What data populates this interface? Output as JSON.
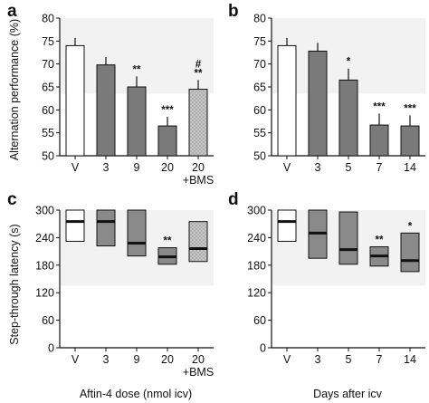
{
  "colors": {
    "bar_white": "#ffffff",
    "bar_gray": "#7a7a7a",
    "bar_stipple": "#bdbdbd",
    "box_gray": "#8a8a8a",
    "median": "#111111",
    "axis": "#111111",
    "panel_shade": "#f2f2f2"
  },
  "chart_data": [
    {
      "panel": "a",
      "type": "bar",
      "ylabel": "Alternation performance (%)",
      "xlabel": "",
      "ylim": [
        50,
        80
      ],
      "yticks": [
        "50",
        "55",
        "60",
        "65",
        "70",
        "75",
        "80"
      ],
      "categories": [
        "V",
        "3",
        "9",
        "20",
        "20 +BMS"
      ],
      "values": [
        74,
        69.8,
        65,
        56.5,
        64.5
      ],
      "errors": [
        1.7,
        1.7,
        2.3,
        2.0,
        2.0
      ],
      "fills": [
        "white",
        "gray",
        "gray",
        "gray",
        "stipple"
      ],
      "significance": [
        "",
        "",
        "**",
        "***",
        "# **"
      ]
    },
    {
      "panel": "b",
      "type": "bar",
      "ylabel": "",
      "xlabel": "",
      "ylim": [
        50,
        80
      ],
      "yticks": [
        "50",
        "55",
        "60",
        "65",
        "70",
        "75",
        "80"
      ],
      "categories": [
        "V",
        "3",
        "5",
        "7",
        "14"
      ],
      "values": [
        74,
        72.8,
        66.5,
        56.7,
        56.5
      ],
      "errors": [
        1.7,
        1.8,
        2.5,
        2.5,
        2.3
      ],
      "fills": [
        "white",
        "gray",
        "gray",
        "gray",
        "gray"
      ],
      "significance": [
        "",
        "",
        "*",
        "***",
        "***"
      ]
    },
    {
      "panel": "c",
      "type": "box",
      "ylabel": "Step-through latency (s)",
      "xlabel": "Aftin-4 dose (nmol icv)",
      "ylim": [
        0,
        300
      ],
      "yticks": [
        "0",
        "60",
        "120",
        "180",
        "240",
        "300"
      ],
      "categories": [
        "V",
        "3",
        "9",
        "20",
        "20 +BMS"
      ],
      "boxes": [
        {
          "low": 232,
          "high": 300,
          "median": 275
        },
        {
          "low": 222,
          "high": 300,
          "median": 275
        },
        {
          "low": 200,
          "high": 300,
          "median": 228
        },
        {
          "low": 182,
          "high": 218,
          "median": 198
        },
        {
          "low": 188,
          "high": 275,
          "median": 216
        }
      ],
      "fills": [
        "white",
        "gray",
        "gray",
        "gray",
        "stipple"
      ],
      "significance": [
        "",
        "",
        "",
        "**",
        ""
      ]
    },
    {
      "panel": "d",
      "type": "box",
      "ylabel": "",
      "xlabel": "Days after icv",
      "ylim": [
        0,
        300
      ],
      "yticks": [
        "0",
        "60",
        "120",
        "180",
        "240",
        "300"
      ],
      "categories": [
        "V",
        "3",
        "5",
        "7",
        "14"
      ],
      "boxes": [
        {
          "low": 232,
          "high": 300,
          "median": 275
        },
        {
          "low": 195,
          "high": 300,
          "median": 250
        },
        {
          "low": 182,
          "high": 296,
          "median": 214
        },
        {
          "low": 178,
          "high": 220,
          "median": 200
        },
        {
          "low": 166,
          "high": 250,
          "median": 190
        }
      ],
      "fills": [
        "white",
        "gray",
        "gray",
        "gray",
        "gray"
      ],
      "significance": [
        "",
        "",
        "",
        "**",
        "*"
      ]
    }
  ]
}
